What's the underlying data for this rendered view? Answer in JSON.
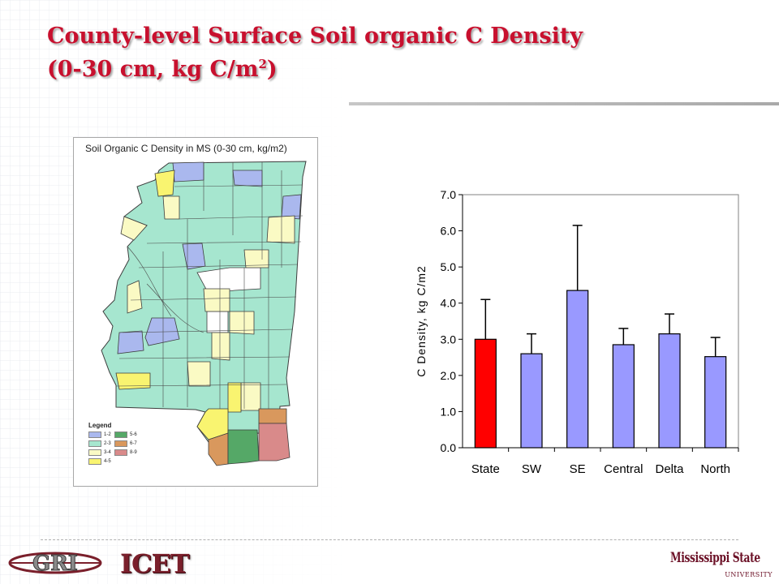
{
  "slide": {
    "title_line1": "County-level Surface Soil organic C Density",
    "title_line2_prefix": "(0-30 cm, kg C/m",
    "title_line2_sup": "2",
    "title_line2_suffix": ")"
  },
  "map": {
    "title": "Soil Organic C Density in MS (0-30 cm, kg/m2)",
    "legend_title": "Legend",
    "legend": [
      {
        "label": "1-2",
        "color": "#aab8ee"
      },
      {
        "label": "5-6",
        "color": "#55a867"
      },
      {
        "label": "2-3",
        "color": "#a6e6cf"
      },
      {
        "label": "6-7",
        "color": "#d9985d"
      },
      {
        "label": "3-4",
        "color": "#fafac4"
      },
      {
        "label": "8-9",
        "color": "#d98a8a"
      },
      {
        "label": "4-5",
        "color": "#f9f470"
      }
    ]
  },
  "chart_data": {
    "type": "bar",
    "categories": [
      "State",
      "SW",
      "SE",
      "Central",
      "Delta",
      "North"
    ],
    "values": [
      3.0,
      2.6,
      4.35,
      2.85,
      3.15,
      2.52
    ],
    "error_upper": [
      4.1,
      3.15,
      6.15,
      3.3,
      3.7,
      3.05
    ],
    "bar_colors": [
      "#ff0000",
      "#9999ff",
      "#9999ff",
      "#9999ff",
      "#9999ff",
      "#9999ff"
    ],
    "title": "",
    "xlabel": "",
    "ylabel": "C Density, kg C/m2",
    "ylim": [
      0,
      7
    ],
    "yticks": [
      "0.0",
      "1.0",
      "2.0",
      "3.0",
      "4.0",
      "5.0",
      "6.0",
      "7.0"
    ],
    "grid": false
  },
  "footer": {
    "logo_left": "GRI",
    "logo_center": "ICET",
    "logo_right_name": "Mississippi State",
    "logo_right_sub": "UNIVERSITY"
  }
}
